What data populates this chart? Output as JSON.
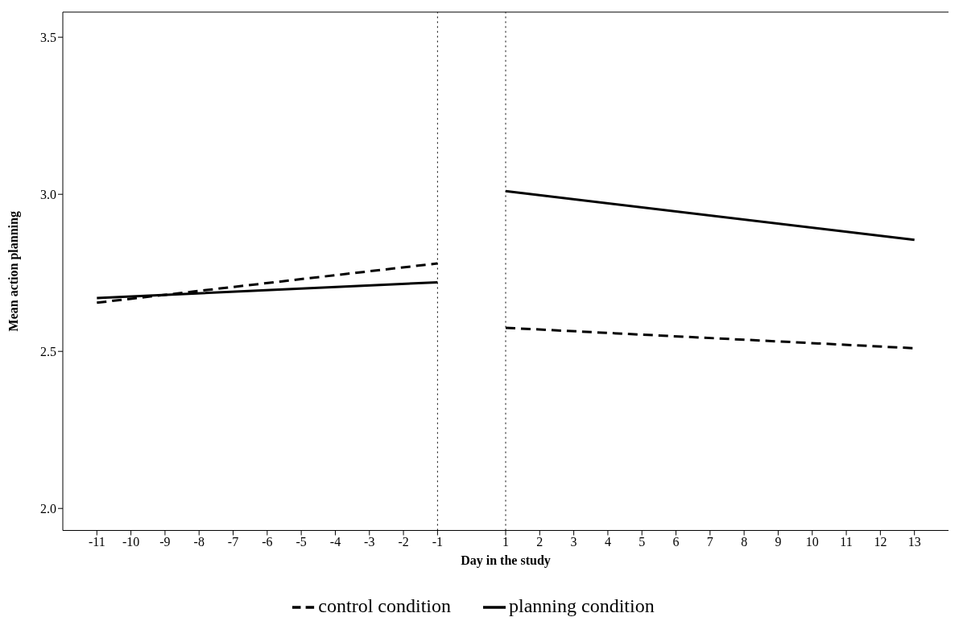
{
  "chart_data": {
    "type": "line",
    "xlabel": "Day in the study",
    "ylabel": "Mean action planning",
    "x": [
      -11,
      -1,
      0,
      1,
      13
    ],
    "series": [
      {
        "name": "control condition",
        "color": "#000000",
        "line_style": "dashed",
        "values": [
          2.655,
          2.78,
          null,
          2.575,
          2.51
        ]
      },
      {
        "name": "planning condition",
        "color": "#000000",
        "line_style": "solid",
        "values": [
          2.67,
          2.72,
          null,
          3.01,
          2.855
        ]
      }
    ],
    "xlim": [
      -12,
      14
    ],
    "xticks": [
      -11,
      -10,
      -9,
      -8,
      -7,
      -6,
      -5,
      -4,
      -3,
      -2,
      -1,
      1,
      2,
      3,
      4,
      5,
      6,
      7,
      8,
      9,
      10,
      11,
      12,
      13
    ],
    "ylim": [
      1.93,
      3.58
    ],
    "yticks": [
      {
        "value": 2,
        "label": "2.0"
      },
      2.5,
      {
        "value": 3,
        "label": "3.0"
      },
      3.5
    ],
    "ref_lines": [
      {
        "axis": "x",
        "value": -1,
        "line_style": "dotted"
      },
      {
        "axis": "x",
        "value": 1,
        "line_style": "dotted"
      }
    ],
    "grid": false,
    "legend": "bottom",
    "marker": "none"
  }
}
